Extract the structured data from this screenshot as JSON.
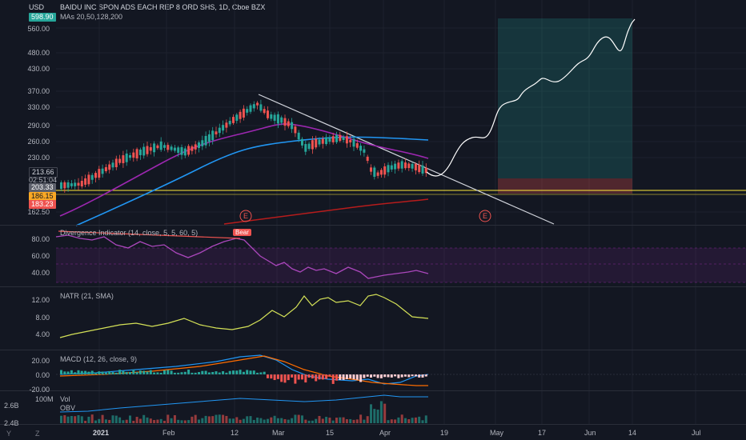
{
  "header": {
    "currency": "USD",
    "title": "BAIDU INC SPON ADS EACH REP 8 ORD SHS, 1D, Cboe BZX",
    "ma_label": "MAs 20,50,128,200"
  },
  "price_tags": {
    "top": "598.90",
    "current": "213.66",
    "countdown": "02:51:04",
    "p1": "203.33",
    "p2": "186.15",
    "p3": "183.23"
  },
  "price_axis": [
    "560.00",
    "480.00",
    "430.00",
    "370.00",
    "330.00",
    "290.00",
    "260.00",
    "230.00",
    "162.50"
  ],
  "events": {
    "e1": "E",
    "e2": "E"
  },
  "div_indicator": {
    "label": "Divergence Indicator (14, close, 5, 5, 60, 5)",
    "bear": "Bear",
    "axis": [
      "80.00",
      "60.00",
      "40.00"
    ]
  },
  "natr": {
    "label": "NATR (21, SMA)",
    "axis": [
      "12.00",
      "8.00",
      "4.00"
    ]
  },
  "macd": {
    "label": "MACD (12, 26, close, 9)",
    "axis": [
      "20.00",
      "0.00",
      "-20.00"
    ]
  },
  "vol": {
    "label": "Vol",
    "obv": "OBV",
    "axis_vol": "100M",
    "axis_obv_hi": "2.6B",
    "axis_obv_lo": "2.4B"
  },
  "time_axis": [
    "2021",
    "Feb",
    "12",
    "Mar",
    "15",
    "Apr",
    "19",
    "May",
    "17",
    "Jun",
    "14",
    "Jul"
  ],
  "corner": {
    "y": "Y",
    "z": "Z"
  },
  "colors": {
    "bg": "#131722",
    "up": "#26a69a",
    "down": "#ef5350",
    "ma20": "#9c27b0",
    "ma50": "#2196f3",
    "ma200": "#b71c1c",
    "accent": "#ffeb3b"
  }
}
